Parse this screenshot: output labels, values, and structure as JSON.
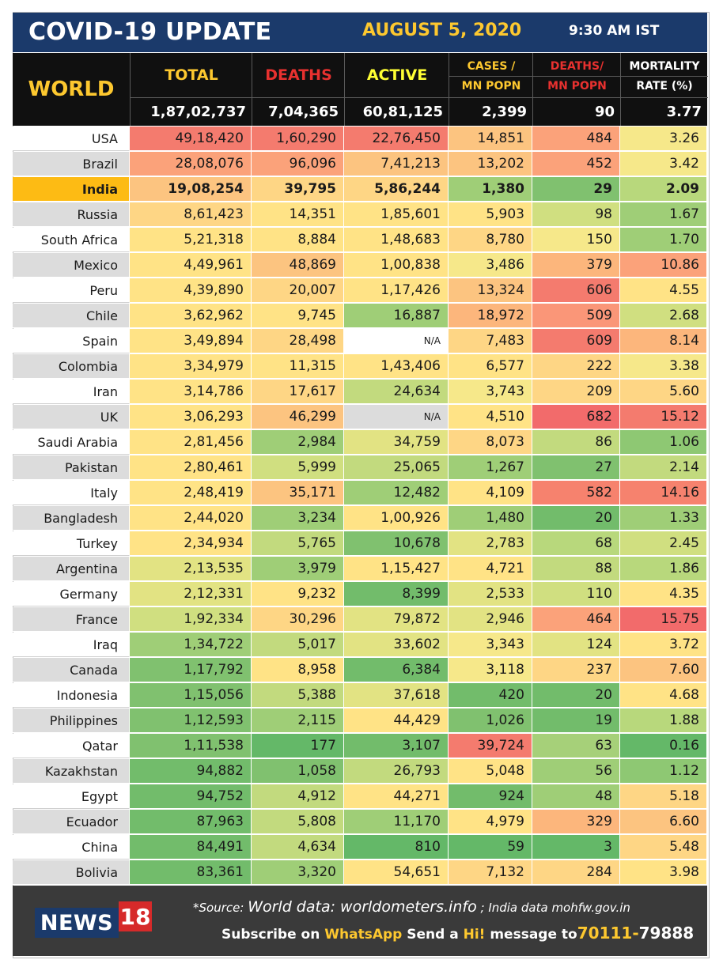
{
  "header": {
    "title": "COVID-19 UPDATE",
    "date": "AUGUST 5, 2020",
    "time": "9:30 AM IST"
  },
  "world": {
    "label": "WORLD",
    "columns": [
      {
        "label": "TOTAL",
        "color": "#fdc82f"
      },
      {
        "label": "DEATHS",
        "color": "#e8312f"
      },
      {
        "label": "ACTIVE",
        "color": "#ffff33"
      },
      {
        "label": "CASES /",
        "label2": "MN POPN",
        "color": "#fdc82f"
      },
      {
        "label": "DEATHS/",
        "label2": "MN POPN",
        "color": "#e8312f"
      },
      {
        "label": "MORTALITY",
        "label2": "RATE (%)",
        "color": "#ffffff"
      }
    ],
    "values": [
      "1,87,02,737",
      "7,04,365",
      "60,81,125",
      "2,399",
      "90",
      "3.77"
    ]
  },
  "table": {
    "rows": [
      {
        "name": "USA",
        "cells": [
          "49,18,420",
          "1,60,290",
          "22,76,450",
          "14,851",
          "484",
          "3.26"
        ],
        "colors": [
          "#f47b6e",
          "#f47b6e",
          "#f47b6e",
          "#fcc480",
          "#fba27a",
          "#f6e88a"
        ]
      },
      {
        "name": "Brazil",
        "cells": [
          "28,08,076",
          "96,096",
          "7,41,213",
          "13,202",
          "452",
          "3.42"
        ],
        "colors": [
          "#fba27a",
          "#fba27a",
          "#fcc480",
          "#fcc480",
          "#fba27a",
          "#f6e88a"
        ]
      },
      {
        "name": "India",
        "cells": [
          "19,08,254",
          "39,795",
          "5,86,244",
          "1,380",
          "29",
          "2.09"
        ],
        "colors": [
          "#fcc480",
          "#fed685",
          "#fed685",
          "#9fce77",
          "#80c16f",
          "#b8d87c"
        ],
        "highlight": true
      },
      {
        "name": "Russia",
        "cells": [
          "8,61,423",
          "14,351",
          "1,85,601",
          "5,903",
          "98",
          "1.67"
        ],
        "colors": [
          "#fed685",
          "#ffe386",
          "#ffe386",
          "#ffe386",
          "#d0df80",
          "#9fce77"
        ]
      },
      {
        "name": "South Africa",
        "cells": [
          "5,21,318",
          "8,884",
          "1,48,683",
          "8,780",
          "150",
          "1.70"
        ],
        "colors": [
          "#ffe386",
          "#ffe386",
          "#ffe386",
          "#fed685",
          "#f6e88a",
          "#9fce77"
        ]
      },
      {
        "name": "Mexico",
        "cells": [
          "4,49,961",
          "48,869",
          "1,00,838",
          "3,486",
          "379",
          "10.86"
        ],
        "colors": [
          "#ffe386",
          "#fcc480",
          "#ffe386",
          "#f6e88a",
          "#fcb67c",
          "#fba27a"
        ]
      },
      {
        "name": "Peru",
        "cells": [
          "4,39,890",
          "20,007",
          "1,17,426",
          "13,324",
          "606",
          "4.55"
        ],
        "colors": [
          "#ffe386",
          "#fed685",
          "#ffe386",
          "#fcc480",
          "#f47b6e",
          "#ffe386"
        ]
      },
      {
        "name": "Chile",
        "cells": [
          "3,62,962",
          "9,745",
          "16,887",
          "18,972",
          "509",
          "2.68"
        ],
        "colors": [
          "#ffe386",
          "#ffe386",
          "#9fce77",
          "#fcb67c",
          "#fa9678",
          "#d0df80"
        ]
      },
      {
        "name": "Spain",
        "cells": [
          "3,49,894",
          "28,498",
          "N/A",
          "7,483",
          "609",
          "8.14"
        ],
        "colors": [
          "#ffe386",
          "#fed685",
          "#ffffff",
          "#fed685",
          "#f47b6e",
          "#fcb67c"
        ]
      },
      {
        "name": "Colombia",
        "cells": [
          "3,34,979",
          "11,315",
          "1,43,406",
          "6,577",
          "222",
          "3.38"
        ],
        "colors": [
          "#ffe386",
          "#ffe386",
          "#ffe386",
          "#ffe386",
          "#fed685",
          "#f6e88a"
        ]
      },
      {
        "name": "Iran",
        "cells": [
          "3,14,786",
          "17,617",
          "24,634",
          "3,743",
          "209",
          "5.60"
        ],
        "colors": [
          "#ffe386",
          "#fed685",
          "#c2da7e",
          "#f6e88a",
          "#fed685",
          "#fed685"
        ]
      },
      {
        "name": "UK",
        "cells": [
          "3,06,293",
          "46,299",
          "N/A",
          "4,510",
          "682",
          "15.12"
        ],
        "colors": [
          "#ffe386",
          "#fcc480",
          "#dcdcdc",
          "#ffe386",
          "#f26b6b",
          "#f47b6e"
        ]
      },
      {
        "name": "Saudi Arabia",
        "cells": [
          "2,81,456",
          "2,984",
          "34,759",
          "8,073",
          "86",
          "1.06"
        ],
        "colors": [
          "#ffe386",
          "#9fce77",
          "#e2e383",
          "#fed685",
          "#c2da7e",
          "#8ec873"
        ]
      },
      {
        "name": "Pakistan",
        "cells": [
          "2,80,461",
          "5,999",
          "25,065",
          "1,267",
          "27",
          "2.14"
        ],
        "colors": [
          "#ffe386",
          "#d0df80",
          "#c2da7e",
          "#9fce77",
          "#80c16f",
          "#c2da7e"
        ]
      },
      {
        "name": "Italy",
        "cells": [
          "2,48,419",
          "35,171",
          "12,482",
          "4,109",
          "582",
          "14.16"
        ],
        "colors": [
          "#ffe386",
          "#fcc480",
          "#9fce77",
          "#ffe386",
          "#f6826e",
          "#f6826e"
        ]
      },
      {
        "name": "Bangladesh",
        "cells": [
          "2,44,020",
          "3,234",
          "1,00,926",
          "1,480",
          "20",
          "1.33"
        ],
        "colors": [
          "#ffe386",
          "#9fce77",
          "#ffe386",
          "#9fce77",
          "#72bc6b",
          "#9fce77"
        ]
      },
      {
        "name": "Turkey",
        "cells": [
          "2,34,934",
          "5,765",
          "10,678",
          "2,783",
          "68",
          "2.45"
        ],
        "colors": [
          "#ffe386",
          "#c2da7e",
          "#80c16f",
          "#e2e383",
          "#b8d87c",
          "#d0df80"
        ]
      },
      {
        "name": "Argentina",
        "cells": [
          "2,13,535",
          "3,979",
          "1,15,427",
          "4,721",
          "88",
          "1.86"
        ],
        "colors": [
          "#e2e383",
          "#9fce77",
          "#ffe386",
          "#ffe386",
          "#c2da7e",
          "#b8d87c"
        ]
      },
      {
        "name": "Germany",
        "cells": [
          "2,12,331",
          "9,232",
          "8,399",
          "2,533",
          "110",
          "4.35"
        ],
        "colors": [
          "#e2e383",
          "#ffe386",
          "#72bc6b",
          "#e2e383",
          "#d0df80",
          "#ffe386"
        ]
      },
      {
        "name": "France",
        "cells": [
          "1,92,334",
          "30,296",
          "79,872",
          "2,946",
          "464",
          "15.75"
        ],
        "colors": [
          "#d0df80",
          "#fed685",
          "#e2e383",
          "#e2e383",
          "#fba27a",
          "#f26b6b"
        ]
      },
      {
        "name": "Iraq",
        "cells": [
          "1,34,722",
          "5,017",
          "33,602",
          "3,343",
          "124",
          "3.72"
        ],
        "colors": [
          "#9fce77",
          "#c2da7e",
          "#e2e383",
          "#f6e88a",
          "#e2e383",
          "#ffe386"
        ]
      },
      {
        "name": "Canada",
        "cells": [
          "1,17,792",
          "8,958",
          "6,384",
          "3,118",
          "237",
          "7.60"
        ],
        "colors": [
          "#80c16f",
          "#ffe386",
          "#72bc6b",
          "#f6e88a",
          "#fed685",
          "#fcc480"
        ]
      },
      {
        "name": "Indonesia",
        "cells": [
          "1,15,056",
          "5,388",
          "37,618",
          "420",
          "20",
          "4.68"
        ],
        "colors": [
          "#80c16f",
          "#c2da7e",
          "#e2e383",
          "#72bc6b",
          "#72bc6b",
          "#ffe386"
        ]
      },
      {
        "name": "Philippines",
        "cells": [
          "1,12,593",
          "2,115",
          "44,429",
          "1,026",
          "19",
          "1.88"
        ],
        "colors": [
          "#80c16f",
          "#9fce77",
          "#ffe386",
          "#80c16f",
          "#72bc6b",
          "#b8d87c"
        ]
      },
      {
        "name": "Qatar",
        "cells": [
          "1,11,538",
          "177",
          "3,107",
          "39,724",
          "63",
          "0.16"
        ],
        "colors": [
          "#80c16f",
          "#64b868",
          "#72bc6b",
          "#f47b6e",
          "#a6d079",
          "#64b868"
        ]
      },
      {
        "name": "Kazakhstan",
        "cells": [
          "94,882",
          "1,058",
          "26,793",
          "5,048",
          "56",
          "1.12"
        ],
        "colors": [
          "#72bc6b",
          "#80c16f",
          "#c2da7e",
          "#ffe386",
          "#9fce77",
          "#8ec873"
        ]
      },
      {
        "name": "Egypt",
        "cells": [
          "94,752",
          "4,912",
          "44,271",
          "924",
          "48",
          "5.18"
        ],
        "colors": [
          "#72bc6b",
          "#c2da7e",
          "#ffe386",
          "#72bc6b",
          "#9fce77",
          "#fed685"
        ]
      },
      {
        "name": "Ecuador",
        "cells": [
          "87,963",
          "5,808",
          "11,170",
          "4,979",
          "329",
          "6.60"
        ],
        "colors": [
          "#72bc6b",
          "#c2da7e",
          "#9fce77",
          "#ffe386",
          "#fcb67c",
          "#fcc480"
        ]
      },
      {
        "name": "China",
        "cells": [
          "84,491",
          "4,634",
          "810",
          "59",
          "3",
          "5.48"
        ],
        "colors": [
          "#72bc6b",
          "#c2da7e",
          "#64b868",
          "#64b868",
          "#64b868",
          "#fed685"
        ]
      },
      {
        "name": "Bolivia",
        "cells": [
          "83,361",
          "3,320",
          "54,651",
          "7,132",
          "284",
          "3.98"
        ],
        "colors": [
          "#72bc6b",
          "#9fce77",
          "#ffe386",
          "#fed685",
          "#fed685",
          "#ffe386"
        ]
      }
    ]
  },
  "footer": {
    "logo_text": "NEWS",
    "logo_num": "18",
    "source_prefix": "*Source:",
    "source_world": "World data: worldometers.info",
    "source_sep": ";",
    "source_india": "India data mohfw.gov.in",
    "subscribe_1": "Subscribe on",
    "subscribe_app": "WhatsApp",
    "subscribe_2": "Send a",
    "subscribe_hi": "Hi!",
    "subscribe_3": "message to",
    "phone_a": "70111-",
    "phone_b": "79888"
  },
  "colors": {
    "title_bg": "#1b3a6b",
    "accent_yellow": "#fdc82f",
    "name_odd": "#ffffff",
    "name_even": "#dcdcdc",
    "india_highlight": "#fdbb14",
    "footer_bg": "#3a3a3a"
  }
}
